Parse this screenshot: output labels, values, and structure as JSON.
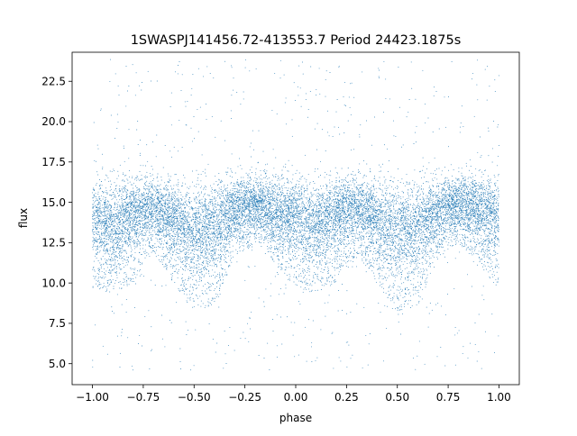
{
  "chart_data": {
    "type": "scatter",
    "title": "1SWASPJ141456.72-413553.7 Period 24423.1875s",
    "xlabel": "phase",
    "ylabel": "flux",
    "xlim": [
      -1.1,
      1.1
    ],
    "ylim": [
      3.7,
      24.3
    ],
    "x_ticks": [
      -1.0,
      -0.75,
      -0.5,
      -0.25,
      0.0,
      0.25,
      0.5,
      0.75,
      1.0
    ],
    "x_tick_labels": [
      "−1.00",
      "−0.75",
      "−0.50",
      "−0.25",
      "0.00",
      "0.25",
      "0.50",
      "0.75",
      "1.00"
    ],
    "y_ticks": [
      5.0,
      7.5,
      10.0,
      12.5,
      15.0,
      17.5,
      20.0,
      22.5
    ],
    "y_tick_labels": [
      "5.0",
      "7.5",
      "10.0",
      "12.5",
      "15.0",
      "17.5",
      "20.0",
      "22.5"
    ],
    "grid": false,
    "legend": "none",
    "marker_color": "#1f77b4",
    "series": [
      {
        "phase_range": [
          -1.0,
          1.0
        ],
        "flux_range": [
          4.6,
          23.9
        ],
        "profile": [
          {
            "phase": -1.0,
            "flux_median": 14.2,
            "lower_envelope": 9.6,
            "upper_envelope": 17.4
          },
          {
            "phase": -0.9,
            "flux_median": 13.6,
            "lower_envelope": 9.4,
            "upper_envelope": 17.0
          },
          {
            "phase": -0.8,
            "flux_median": 14.3,
            "lower_envelope": 10.0,
            "upper_envelope": 17.1
          },
          {
            "phase": -0.7,
            "flux_median": 14.8,
            "lower_envelope": 11.8,
            "upper_envelope": 17.6
          },
          {
            "phase": -0.6,
            "flux_median": 14.0,
            "lower_envelope": 10.0,
            "upper_envelope": 17.2
          },
          {
            "phase": -0.5,
            "flux_median": 13.2,
            "lower_envelope": 8.2,
            "upper_envelope": 16.6
          },
          {
            "phase": -0.4,
            "flux_median": 13.5,
            "lower_envelope": 8.6,
            "upper_envelope": 16.8
          },
          {
            "phase": -0.3,
            "flux_median": 14.6,
            "lower_envelope": 11.5,
            "upper_envelope": 17.4
          },
          {
            "phase": -0.2,
            "flux_median": 15.0,
            "lower_envelope": 12.5,
            "upper_envelope": 17.6
          },
          {
            "phase": -0.1,
            "flux_median": 14.6,
            "lower_envelope": 11.2,
            "upper_envelope": 17.4
          },
          {
            "phase": 0.0,
            "flux_median": 14.2,
            "lower_envelope": 9.6,
            "upper_envelope": 17.4
          },
          {
            "phase": 0.1,
            "flux_median": 13.6,
            "lower_envelope": 9.4,
            "upper_envelope": 17.0
          },
          {
            "phase": 0.2,
            "flux_median": 14.3,
            "lower_envelope": 10.0,
            "upper_envelope": 17.1
          },
          {
            "phase": 0.3,
            "flux_median": 14.8,
            "lower_envelope": 11.8,
            "upper_envelope": 17.6
          },
          {
            "phase": 0.4,
            "flux_median": 14.0,
            "lower_envelope": 10.0,
            "upper_envelope": 17.2
          },
          {
            "phase": 0.5,
            "flux_median": 13.2,
            "lower_envelope": 8.2,
            "upper_envelope": 16.6
          },
          {
            "phase": 0.6,
            "flux_median": 13.5,
            "lower_envelope": 8.6,
            "upper_envelope": 16.8
          },
          {
            "phase": 0.7,
            "flux_median": 14.6,
            "lower_envelope": 11.5,
            "upper_envelope": 17.4
          },
          {
            "phase": 0.8,
            "flux_median": 15.0,
            "lower_envelope": 12.5,
            "upper_envelope": 17.6
          },
          {
            "phase": 0.9,
            "flux_median": 14.6,
            "lower_envelope": 11.2,
            "upper_envelope": 17.4
          },
          {
            "phase": 1.0,
            "flux_median": 14.2,
            "lower_envelope": 9.6,
            "upper_envelope": 17.4
          }
        ]
      }
    ]
  }
}
